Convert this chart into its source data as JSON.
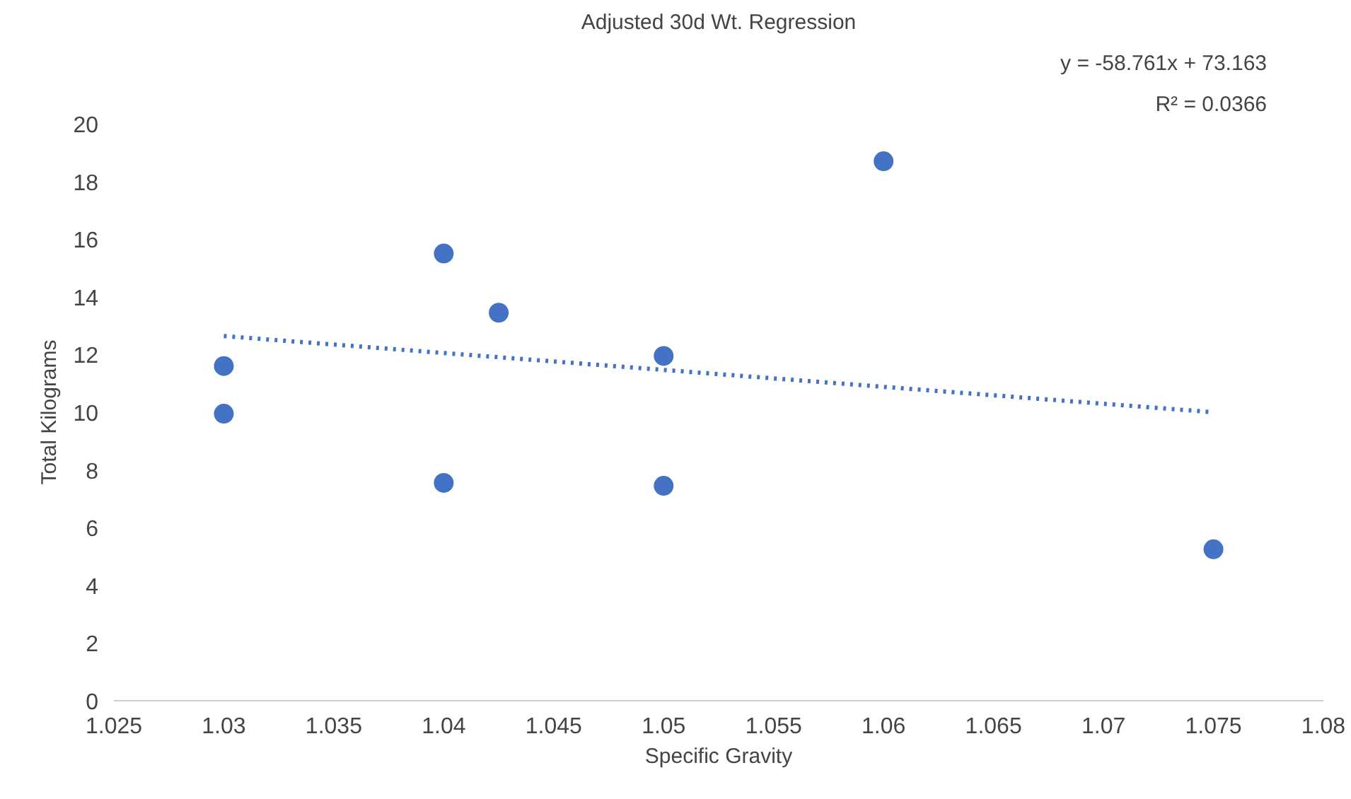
{
  "chart_data": {
    "type": "scatter",
    "title": "Adjusted 30d Wt. Regression",
    "xlabel": "Specific Gravity",
    "ylabel": "Total Kilograms",
    "series": [
      {
        "color": "#4472c4",
        "marker": "circle",
        "x": [
          1.03,
          1.03,
          1.04,
          1.04,
          1.0425,
          1.05,
          1.05,
          1.06,
          1.075
        ],
        "values": [
          11.6,
          9.95,
          15.5,
          7.55,
          13.45,
          11.95,
          7.45,
          18.7,
          5.25
        ]
      },
      {
        "type": "line",
        "color": "#4472c4",
        "line_style": "dotted",
        "x": [
          1.03,
          1.075
        ],
        "values": [
          12.64,
          10.0
        ]
      }
    ],
    "xlim": [
      1.025,
      1.08
    ],
    "xticks": [
      1.025,
      1.03,
      1.035,
      1.04,
      1.045,
      1.05,
      1.055,
      1.06,
      1.065,
      1.07,
      1.075,
      1.08
    ],
    "ylim": [
      0,
      20
    ],
    "yticks": [
      0,
      2,
      4,
      6,
      8,
      10,
      12,
      14,
      16,
      18,
      20
    ],
    "annotations": [
      "y = -58.761x + 73.163",
      "R² = 0.0366"
    ]
  }
}
